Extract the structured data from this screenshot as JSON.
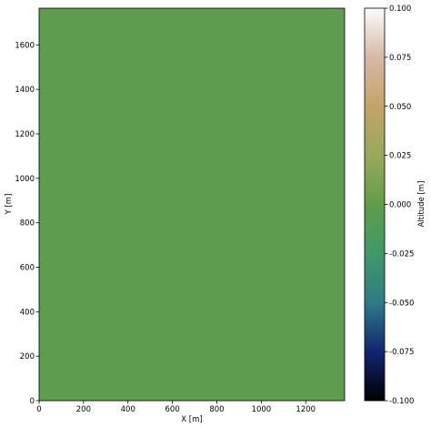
{
  "chart_data": {
    "type": "heatmap",
    "xlabel": "X [m]",
    "ylabel": "Y [m]",
    "colorbar_label": "Altitude [m]",
    "xlim": [
      0,
      1375
    ],
    "ylim": [
      0,
      1765
    ],
    "x_ticks": [
      0,
      200,
      400,
      600,
      800,
      1000,
      1200
    ],
    "y_ticks": [
      0,
      200,
      400,
      600,
      800,
      1000,
      1200,
      1400,
      1600
    ],
    "values": [
      [
        0.0
      ]
    ],
    "vmin": -0.1,
    "vmax": 0.1,
    "colormap": "gist_earth",
    "fill_color": "#5e9c4e",
    "colorbar_ticks": [
      "-0.100",
      "-0.075",
      "-0.050",
      "-0.025",
      "0.000",
      "0.025",
      "0.050",
      "0.075",
      "0.100"
    ],
    "colorbar_stops": [
      {
        "value": -0.1,
        "color": "#000000"
      },
      {
        "value": -0.075,
        "color": "#102670"
      },
      {
        "value": -0.05,
        "color": "#2f7b89"
      },
      {
        "value": -0.025,
        "color": "#3f9a66"
      },
      {
        "value": 0.0,
        "color": "#5f9d4a"
      },
      {
        "value": 0.025,
        "color": "#98a95a"
      },
      {
        "value": 0.05,
        "color": "#c2a46a"
      },
      {
        "value": 0.075,
        "color": "#d7b8a6"
      },
      {
        "value": 0.1,
        "color": "#fcfcfc"
      }
    ]
  }
}
